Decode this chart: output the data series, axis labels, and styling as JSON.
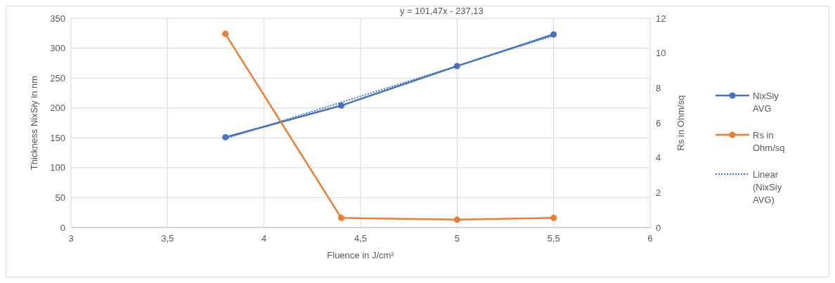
{
  "chart_data": {
    "type": "line",
    "xlabel": "Fluence in J/cm²",
    "ylabel": "Thickness NixSiy in nm",
    "y2label": "Rs in Ohm/sq",
    "x": [
      3.8,
      4.4,
      5,
      5.5
    ],
    "xlim": [
      3,
      6
    ],
    "xticks": [
      3,
      {
        "value": 3.5,
        "label": "3,5"
      },
      4,
      {
        "value": 4.5,
        "label": "4,5"
      },
      5,
      {
        "value": 5.5,
        "label": "5,5"
      },
      6
    ],
    "ylim": [
      0,
      350
    ],
    "yticks": [
      0,
      50,
      100,
      150,
      200,
      250,
      300,
      350
    ],
    "y2lim": [
      0,
      12
    ],
    "y2ticks": [
      0,
      2,
      4,
      6,
      8,
      10,
      12
    ],
    "grid": true,
    "legend": "right",
    "marker": "circle",
    "line_style": "solid",
    "series": [
      {
        "name": "NixSiy AVG",
        "color": "#4472c4",
        "values": [
          151,
          204,
          270,
          323
        ]
      },
      {
        "name": "Rs in Ohm/sq",
        "color": "#ed7d31",
        "axis": "y2",
        "values": [
          11.1,
          0.55,
          0.45,
          0.55
        ]
      },
      {
        "name": "Linear (NixSiy AVG)",
        "color": "#4472c4",
        "x": [
          3.8,
          5.5
        ],
        "values": [
          148.5,
          321
        ],
        "line_style": "dotted",
        "marker": "none"
      }
    ],
    "annotations": [
      "y = 101,47x - 237,13"
    ]
  }
}
